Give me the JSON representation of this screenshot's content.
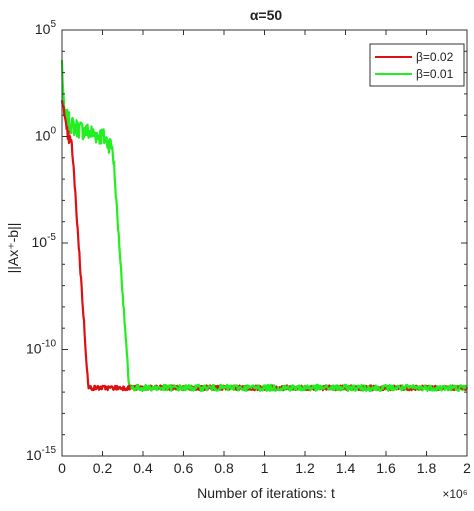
{
  "chart_data": {
    "type": "line",
    "title": "α=50",
    "xlabel": "Number of iterations: t",
    "ylabel": "||Ax⁺-b||",
    "x_multiplier_label": "×10⁶",
    "xlim": [
      0,
      2000000
    ],
    "ylim_log10": [
      -15,
      5
    ],
    "y_scale": "log",
    "grid": false,
    "legend_position": "top-right",
    "x_ticks": [
      {
        "value": 0,
        "label": "0"
      },
      {
        "value": 200000,
        "label": "0.2"
      },
      {
        "value": 400000,
        "label": "0.4"
      },
      {
        "value": 600000,
        "label": "0.6"
      },
      {
        "value": 800000,
        "label": "0.8"
      },
      {
        "value": 1000000,
        "label": "1"
      },
      {
        "value": 1200000,
        "label": "1.2"
      },
      {
        "value": 1400000,
        "label": "1.4"
      },
      {
        "value": 1600000,
        "label": "1.6"
      },
      {
        "value": 1800000,
        "label": "1.8"
      },
      {
        "value": 2000000,
        "label": "2"
      }
    ],
    "y_ticks": [
      {
        "log10": 5,
        "base": "10",
        "exp": "5"
      },
      {
        "log10": 0,
        "base": "10",
        "exp": "0"
      },
      {
        "log10": -5,
        "base": "10",
        "exp": "-5"
      },
      {
        "log10": -10,
        "base": "10",
        "exp": "-10"
      },
      {
        "log10": -15,
        "base": "10",
        "exp": "-15"
      }
    ],
    "series": [
      {
        "name": "β=0.02",
        "color": "#dd1111",
        "points_log10": [
          [
            0,
            2.0
          ],
          [
            15000,
            0.6
          ],
          [
            30000,
            0.0
          ],
          [
            40000,
            -0.2
          ],
          [
            50000,
            -0.5
          ],
          [
            130000,
            -11.8
          ],
          [
            140000,
            -11.8
          ],
          [
            2000000,
            -11.8
          ]
        ]
      },
      {
        "name": "β=0.01",
        "color": "#22ee22",
        "points_log10": [
          [
            0,
            3.5
          ],
          [
            10000,
            1.0
          ],
          [
            50000,
            0.5
          ],
          [
            100000,
            0.3
          ],
          [
            200000,
            0.0
          ],
          [
            250000,
            -0.5
          ],
          [
            330000,
            -11.6
          ],
          [
            340000,
            -11.8
          ],
          [
            2000000,
            -11.8
          ]
        ]
      }
    ]
  }
}
